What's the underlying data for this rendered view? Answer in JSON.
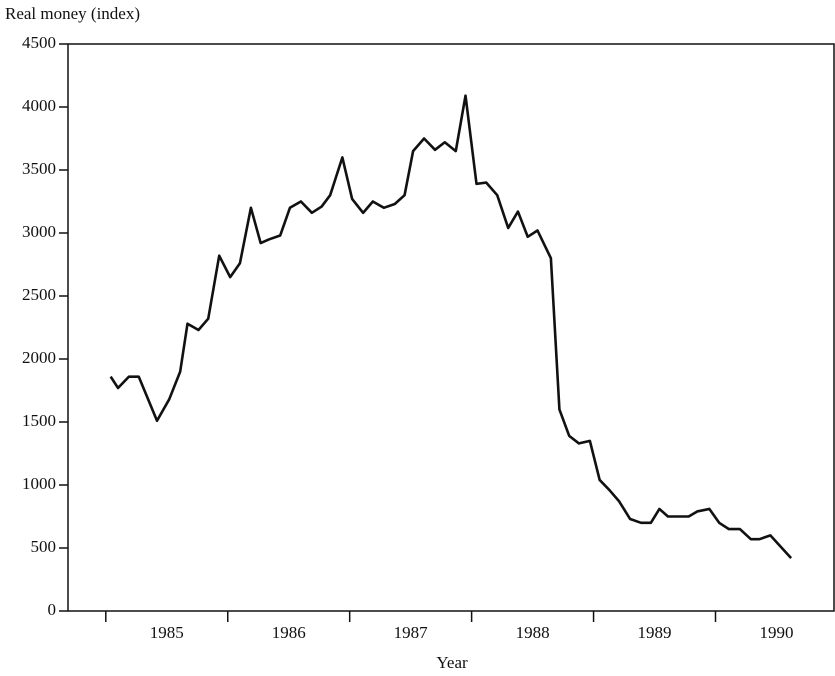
{
  "chart_data": {
    "type": "line",
    "y_label": "Real money (index)",
    "x_label": "Year",
    "x": [
      1985.04,
      1985.1,
      1985.19,
      1985.27,
      1985.42,
      1985.52,
      1985.61,
      1985.67,
      1985.76,
      1985.84,
      1985.93,
      1986.02,
      1986.1,
      1986.19,
      1986.27,
      1986.34,
      1986.43,
      1986.51,
      1986.6,
      1986.69,
      1986.77,
      1986.84,
      1986.94,
      1987.02,
      1987.11,
      1987.19,
      1987.28,
      1987.37,
      1987.45,
      1987.52,
      1987.61,
      1987.7,
      1987.78,
      1987.87,
      1987.95,
      1988.04,
      1988.12,
      1988.21,
      1988.3,
      1988.38,
      1988.46,
      1988.54,
      1988.65,
      1988.72,
      1988.8,
      1988.88,
      1988.97,
      1989.05,
      1989.13,
      1989.21,
      1989.3,
      1989.39,
      1989.47,
      1989.54,
      1989.61,
      1989.7,
      1989.78,
      1989.85,
      1989.95,
      1990.03,
      1990.11,
      1990.2,
      1990.29,
      1990.36,
      1990.45,
      1990.62
    ],
    "series": [
      {
        "name": "Real money",
        "color": "#111111",
        "values": [
          1860,
          1770,
          1860,
          1860,
          1510,
          1680,
          1900,
          2280,
          2230,
          2320,
          2820,
          2650,
          2760,
          3200,
          2920,
          2950,
          2980,
          3200,
          3250,
          3160,
          3210,
          3300,
          3600,
          3270,
          3160,
          3250,
          3200,
          3230,
          3300,
          3650,
          3750,
          3660,
          3720,
          3650,
          4090,
          3390,
          3400,
          3300,
          3040,
          3170,
          2970,
          3020,
          2800,
          1600,
          1390,
          1330,
          1350,
          1040,
          960,
          870,
          730,
          700,
          700,
          810,
          750,
          750,
          750,
          790,
          810,
          700,
          650,
          650,
          570,
          570,
          600,
          420
        ]
      }
    ],
    "xlim": [
      1984.69,
      1990.98
    ],
    "xticks": [
      1985,
      1986,
      1987,
      1988,
      1989,
      1990
    ],
    "ylim": [
      0,
      4500
    ],
    "yticks": [
      0,
      500,
      1000,
      1500,
      2000,
      2500,
      3000,
      3500,
      4000,
      4500
    ]
  }
}
